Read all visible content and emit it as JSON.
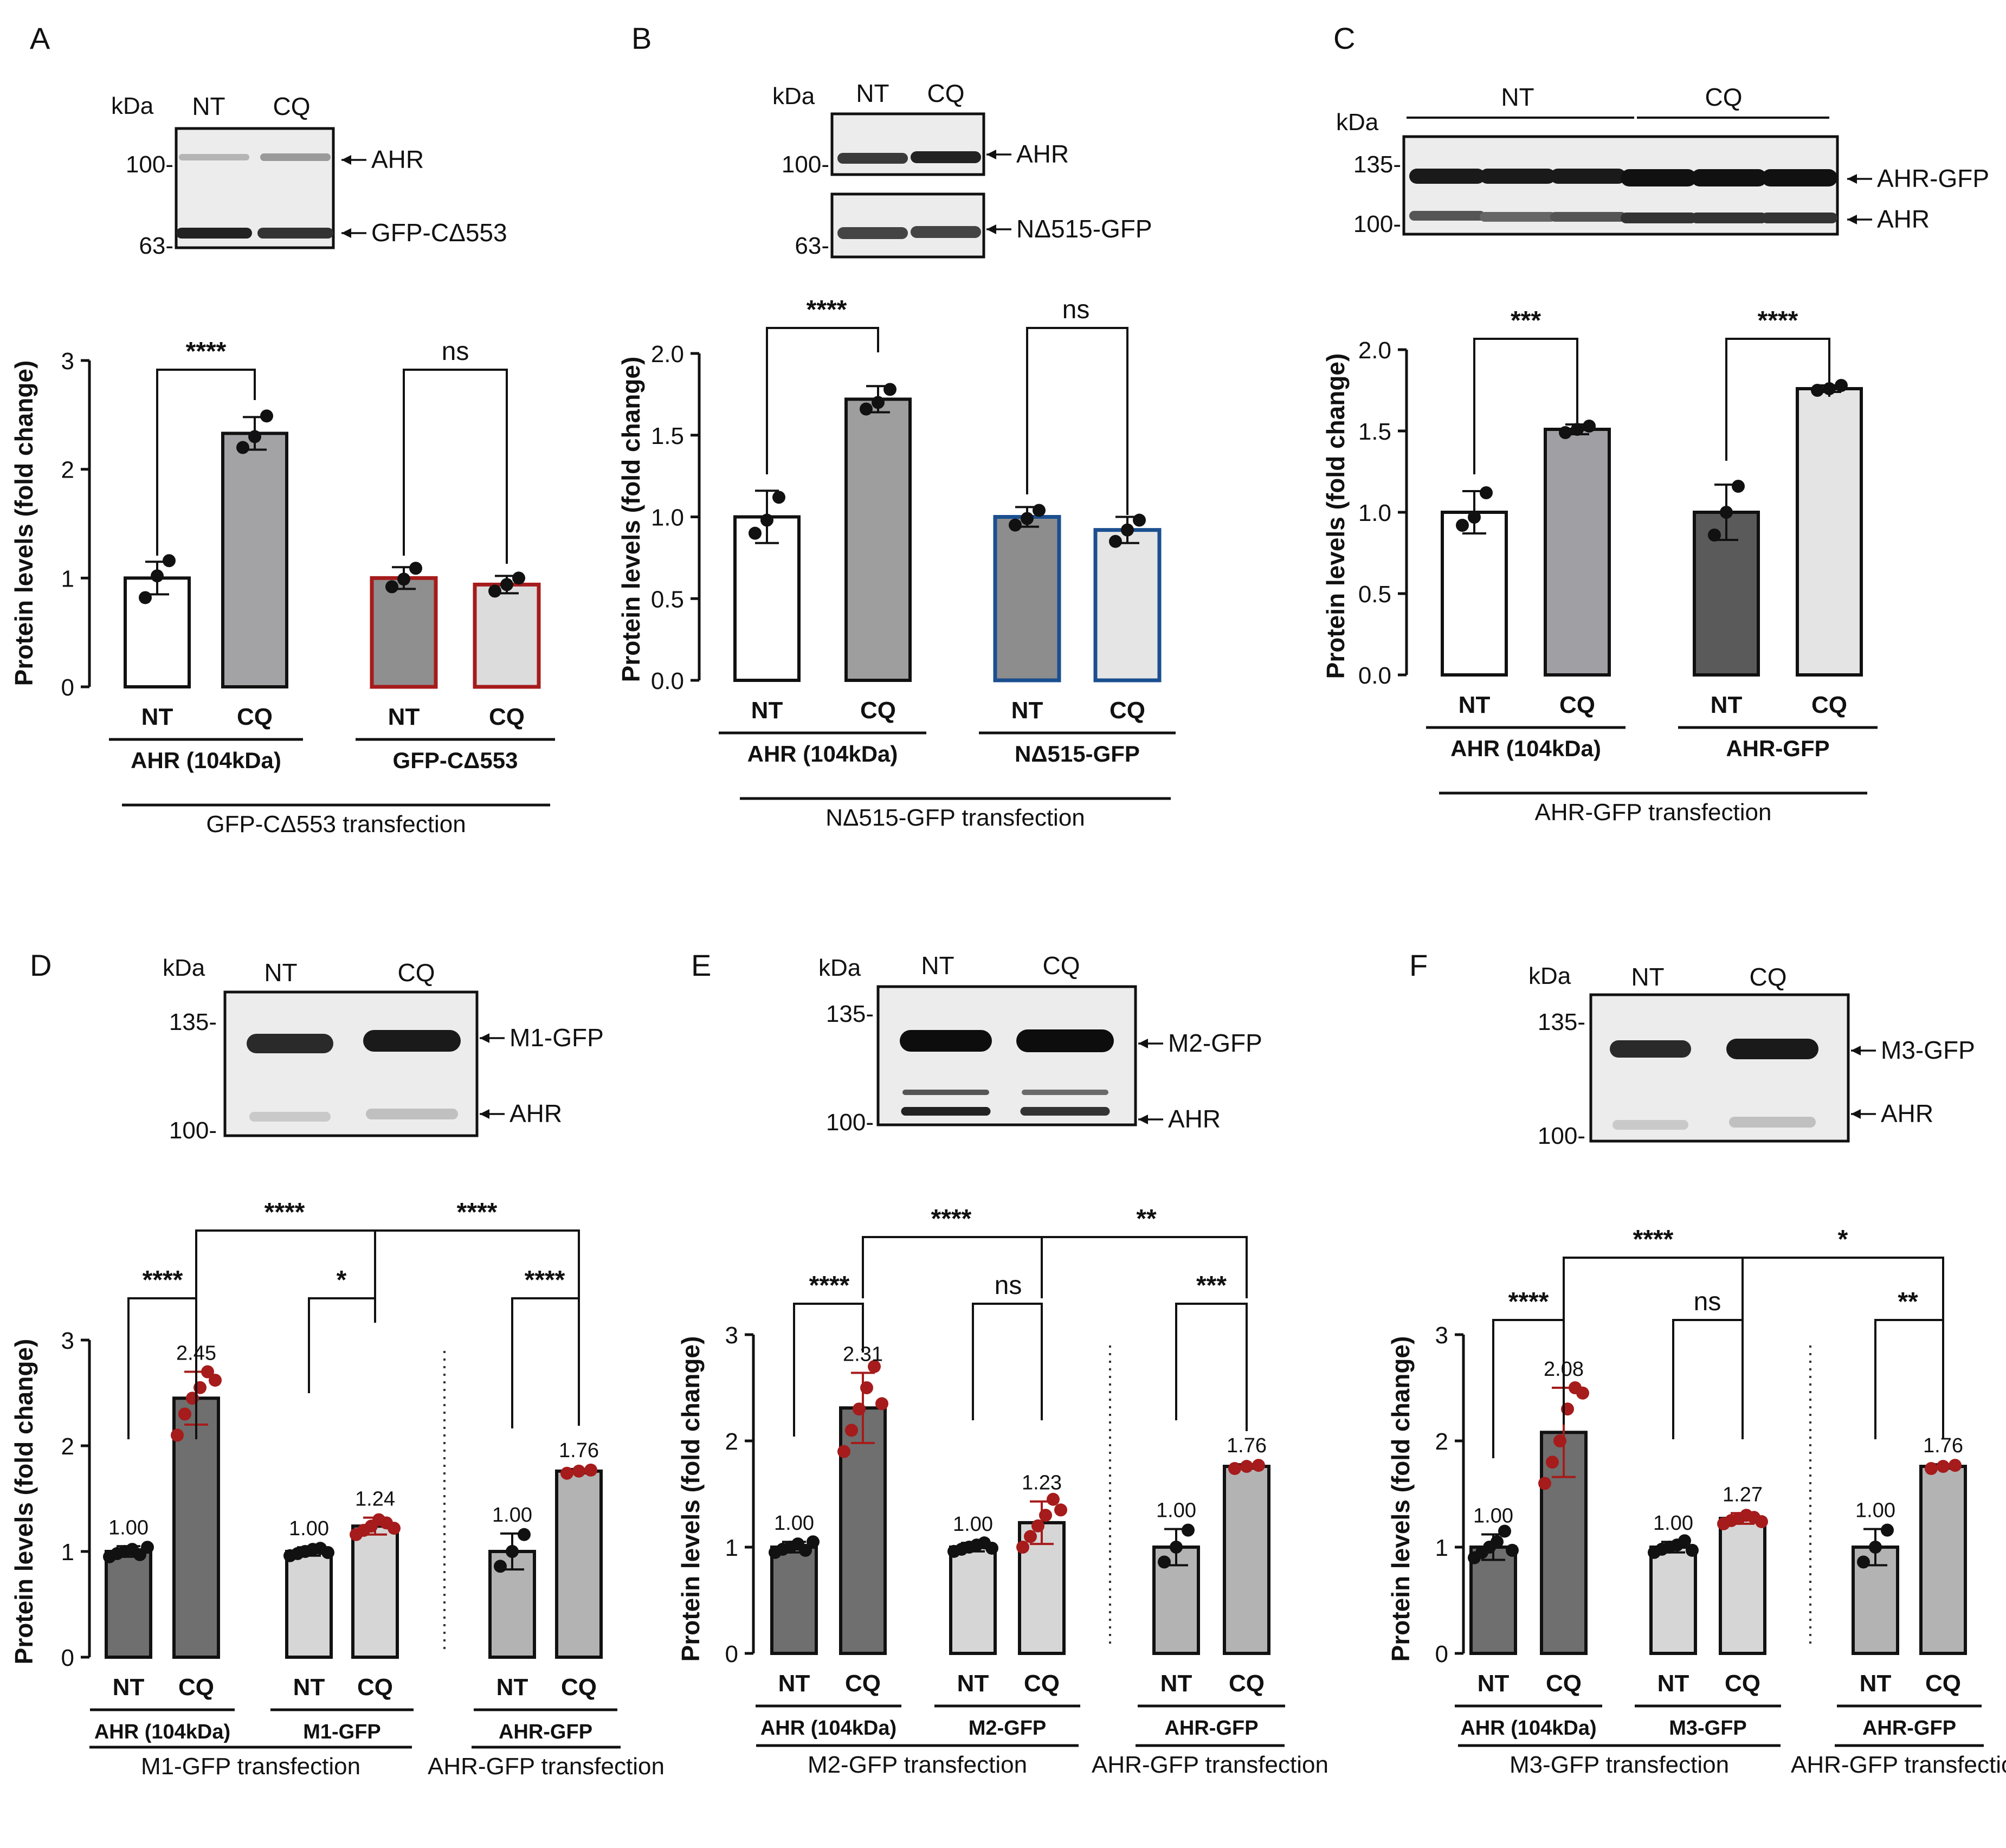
{
  "figure": {
    "panels": [
      {
        "letter": "A",
        "blot": {
          "kda_label": "kDa",
          "lanes": [
            "NT",
            "CQ"
          ],
          "markers": [
            "100-",
            "63-"
          ],
          "band_labels": [
            "AHR",
            "GFP-CΔ553"
          ]
        },
        "chart_data": {
          "type": "bar",
          "ylabel": "Protein levels (fold change)",
          "ylim": [
            0,
            3
          ],
          "yticks": [
            "0",
            "1",
            "2",
            "3"
          ],
          "groups": [
            {
              "label": "AHR (104kDa)",
              "label_color": "#111111",
              "categories": [
                "NT",
                "CQ"
              ],
              "values": [
                1.0,
                2.33
              ],
              "errors": [
                0.15,
                0.15
              ],
              "points": [
                [
                  0.82,
                  1.02,
                  1.16
                ],
                [
                  2.2,
                  2.3,
                  2.49
                ]
              ],
              "fills": [
                "#ffffff",
                "#a3a3a6"
              ],
              "edge": "#111111"
            },
            {
              "label": "GFP-CΔ553",
              "label_color": "#a61b1b",
              "categories": [
                "NT",
                "CQ"
              ],
              "values": [
                1.0,
                0.94
              ],
              "errors": [
                0.1,
                0.08
              ],
              "points": [
                [
                  0.92,
                  0.99,
                  1.09
                ],
                [
                  0.88,
                  0.94,
                  1.0
                ]
              ],
              "fills": [
                "#8f8f8f",
                "#dcdcdc"
              ],
              "edge": "#a61b1b"
            }
          ],
          "significance": [
            {
              "label": "****"
            },
            {
              "label": "ns"
            }
          ],
          "transfection_labels": [
            "GFP-CΔ553 transfection"
          ]
        }
      },
      {
        "letter": "B",
        "blot": {
          "kda_label": "kDa",
          "lanes": [
            "NT",
            "CQ"
          ],
          "markers": [
            "100-",
            "63-"
          ],
          "band_labels": [
            "AHR",
            "NΔ515-GFP"
          ]
        },
        "chart_data": {
          "type": "bar",
          "ylabel": "Protein levels (fold change)",
          "ylim": [
            0,
            2.0
          ],
          "yticks": [
            "0.0",
            "0.5",
            "1.0",
            "1.5",
            "2.0"
          ],
          "groups": [
            {
              "label": "AHR (104kDa)",
              "label_color": "#111111",
              "categories": [
                "NT",
                "CQ"
              ],
              "values": [
                1.0,
                1.72
              ],
              "errors": [
                0.16,
                0.08
              ],
              "points": [
                [
                  0.9,
                  0.98,
                  1.12
                ],
                [
                  1.66,
                  1.7,
                  1.78
                ]
              ],
              "fills": [
                "#ffffff",
                "#9e9e9e"
              ],
              "edge": "#111111"
            },
            {
              "label": "NΔ515-GFP",
              "label_color": "#1b4f8f",
              "categories": [
                "NT",
                "CQ"
              ],
              "values": [
                1.0,
                0.92
              ],
              "errors": [
                0.06,
                0.08
              ],
              "points": [
                [
                  0.95,
                  0.99,
                  1.04
                ],
                [
                  0.85,
                  0.92,
                  0.98
                ]
              ],
              "fills": [
                "#8d8d8d",
                "#e5e5e5"
              ],
              "edge": "#1b4f8f"
            }
          ],
          "significance": [
            {
              "label": "****"
            },
            {
              "label": "ns"
            }
          ],
          "transfection_labels": [
            "NΔ515-GFP transfection"
          ]
        }
      },
      {
        "letter": "C",
        "blot": {
          "kda_label": "kDa",
          "lanes": [
            "NT",
            "CQ"
          ],
          "markers": [
            "135-",
            "100-"
          ],
          "band_labels": [
            "AHR-GFP",
            "AHR"
          ]
        },
        "chart_data": {
          "type": "bar",
          "ylabel": "Protein levels (fold change)",
          "ylim": [
            0,
            2.0
          ],
          "yticks": [
            "0.0",
            "0.5",
            "1.0",
            "1.5",
            "2.0"
          ],
          "groups": [
            {
              "label": "AHR (104kDa)",
              "label_color": "#111111",
              "categories": [
                "NT",
                "CQ"
              ],
              "values": [
                1.0,
                1.51
              ],
              "errors": [
                0.13,
                0.03
              ],
              "points": [
                [
                  0.92,
                  0.97,
                  1.12
                ],
                [
                  1.49,
                  1.51,
                  1.53
                ]
              ],
              "fills": [
                "#ffffff",
                "#a0a0a4"
              ],
              "edge": "#111111"
            },
            {
              "label": "AHR-GFP",
              "label_color": "#111111",
              "categories": [
                "NT",
                "CQ"
              ],
              "values": [
                1.0,
                1.76
              ],
              "errors": [
                0.17,
                0.02
              ],
              "points": [
                [
                  0.86,
                  1.0,
                  1.16
                ],
                [
                  1.75,
                  1.76,
                  1.78
                ]
              ],
              "fills": [
                "#5a5a5a",
                "#e4e4e4"
              ],
              "edge": "#111111"
            }
          ],
          "significance": [
            {
              "label": "***"
            },
            {
              "label": "****"
            }
          ],
          "transfection_labels": [
            "AHR-GFP transfection"
          ]
        }
      },
      {
        "letter": "D",
        "blot": {
          "kda_label": "kDa",
          "lanes": [
            "NT",
            "CQ"
          ],
          "markers": [
            "135-",
            "100-"
          ],
          "band_labels": [
            "M1-GFP",
            "AHR"
          ]
        },
        "chart_data": {
          "type": "bar",
          "ylabel": "Protein levels (fold change)",
          "ylim": [
            0,
            3
          ],
          "yticks": [
            "0",
            "1",
            "2",
            "3"
          ],
          "groups": [
            {
              "label": "AHR (104kDa)",
              "label_color": "#111111",
              "categories": [
                "NT",
                "CQ"
              ],
              "values": [
                1.0,
                2.45
              ],
              "value_labels": [
                "1.00",
                "2.45"
              ],
              "errors": [
                0.05,
                0.25
              ],
              "points": [
                [
                  0.95,
                  0.98,
                  1.0,
                  1.02,
                  0.97,
                  1.04
                ],
                [
                  2.1,
                  2.3,
                  2.45,
                  2.55,
                  2.7,
                  2.62
                ]
              ],
              "fills": [
                "#6f6f6f",
                "#6f6f6f"
              ],
              "edge": "#111111"
            },
            {
              "label": "M1-GFP",
              "label_color": "#a61b1b",
              "categories": [
                "NT",
                "CQ"
              ],
              "values": [
                1.0,
                1.24
              ],
              "value_labels": [
                "1.00",
                "1.24"
              ],
              "errors": [
                0.04,
                0.08
              ],
              "points": [
                [
                  0.96,
                  0.98,
                  1.0,
                  1.02,
                  1.03,
                  0.99
                ],
                [
                  1.16,
                  1.2,
                  1.24,
                  1.3,
                  1.27,
                  1.22
                ]
              ],
              "fills": [
                "#d6d6d6",
                "#d6d6d6"
              ],
              "edge": "#111111"
            },
            {
              "label": "AHR-GFP",
              "label_color": "#111111",
              "categories": [
                "NT",
                "CQ"
              ],
              "values": [
                1.0,
                1.76
              ],
              "value_labels": [
                "1.00",
                "1.76"
              ],
              "errors": [
                0.17,
                0.02
              ],
              "points": [
                [
                  0.86,
                  1.0,
                  1.16
                ],
                [
                  1.74,
                  1.76,
                  1.77
                ]
              ],
              "fills": [
                "#b3b3b3",
                "#b3b3b3"
              ],
              "edge": "#111111"
            }
          ],
          "significance": [
            {
              "label": "****"
            },
            {
              "label": "*"
            },
            {
              "label": "****"
            },
            {
              "label": "****"
            },
            {
              "label": "****"
            }
          ],
          "transfection_labels": [
            "M1-GFP transfection",
            "AHR-GFP transfection"
          ]
        }
      },
      {
        "letter": "E",
        "blot": {
          "kda_label": "kDa",
          "lanes": [
            "NT",
            "CQ"
          ],
          "markers": [
            "135-",
            "100-"
          ],
          "band_labels": [
            "M2-GFP",
            "AHR"
          ]
        },
        "chart_data": {
          "type": "bar",
          "ylabel": "Protein levels (fold change)",
          "ylim": [
            0,
            3
          ],
          "yticks": [
            "0",
            "1",
            "2",
            "3"
          ],
          "groups": [
            {
              "label": "AHR (104kDa)",
              "label_color": "#111111",
              "categories": [
                "NT",
                "CQ"
              ],
              "values": [
                1.0,
                2.31
              ],
              "value_labels": [
                "1.00",
                "2.31"
              ],
              "errors": [
                0.05,
                0.33
              ],
              "points": [
                [
                  0.95,
                  0.98,
                  1.0,
                  1.03,
                  0.97,
                  1.05
                ],
                [
                  1.9,
                  2.1,
                  2.3,
                  2.5,
                  2.7,
                  2.35
                ]
              ],
              "fills": [
                "#6f6f6f",
                "#6f6f6f"
              ],
              "edge": "#111111"
            },
            {
              "label": "M2-GFP",
              "label_color": "#a61b1b",
              "categories": [
                "NT",
                "CQ"
              ],
              "values": [
                1.0,
                1.23
              ],
              "value_labels": [
                "1.00",
                "1.23"
              ],
              "errors": [
                0.04,
                0.2
              ],
              "points": [
                [
                  0.96,
                  0.98,
                  1.0,
                  1.02,
                  1.04,
                  0.99
                ],
                [
                  1.0,
                  1.1,
                  1.2,
                  1.3,
                  1.45,
                  1.35
                ]
              ],
              "fills": [
                "#d6d6d6",
                "#d6d6d6"
              ],
              "edge": "#111111"
            },
            {
              "label": "AHR-GFP",
              "label_color": "#111111",
              "categories": [
                "NT",
                "CQ"
              ],
              "values": [
                1.0,
                1.76
              ],
              "value_labels": [
                "1.00",
                "1.76"
              ],
              "errors": [
                0.17,
                0.02
              ],
              "points": [
                [
                  0.86,
                  1.0,
                  1.16
                ],
                [
                  1.74,
                  1.76,
                  1.77
                ]
              ],
              "fills": [
                "#b3b3b3",
                "#b3b3b3"
              ],
              "edge": "#111111"
            }
          ],
          "significance": [
            {
              "label": "****"
            },
            {
              "label": "ns"
            },
            {
              "label": "***"
            },
            {
              "label": "****"
            },
            {
              "label": "**"
            }
          ],
          "transfection_labels": [
            "M2-GFP transfection",
            "AHR-GFP transfection"
          ]
        }
      },
      {
        "letter": "F",
        "blot": {
          "kda_label": "kDa",
          "lanes": [
            "NT",
            "CQ"
          ],
          "markers": [
            "135-",
            "100-"
          ],
          "band_labels": [
            "M3-GFP",
            "AHR"
          ]
        },
        "chart_data": {
          "type": "bar",
          "ylabel": "Protein levels (fold change)",
          "ylim": [
            0,
            3
          ],
          "yticks": [
            "0",
            "1",
            "2",
            "3"
          ],
          "groups": [
            {
              "label": "AHR (104kDa)",
              "label_color": "#111111",
              "categories": [
                "NT",
                "CQ"
              ],
              "values": [
                1.0,
                2.08
              ],
              "value_labels": [
                "1.00",
                "2.08"
              ],
              "errors": [
                0.12,
                0.42
              ],
              "points": [
                [
                  0.9,
                  0.95,
                  1.0,
                  1.05,
                  1.15,
                  0.97
                ],
                [
                  1.6,
                  1.8,
                  2.0,
                  2.3,
                  2.5,
                  2.45
                ]
              ],
              "fills": [
                "#6f6f6f",
                "#6f6f6f"
              ],
              "edge": "#111111"
            },
            {
              "label": "M3-GFP",
              "label_color": "#a61b1b",
              "categories": [
                "NT",
                "CQ"
              ],
              "values": [
                1.0,
                1.27
              ],
              "value_labels": [
                "1.00",
                "1.27"
              ],
              "errors": [
                0.05,
                0.05
              ],
              "points": [
                [
                  0.95,
                  0.98,
                  1.0,
                  1.02,
                  1.06,
                  0.97
                ],
                [
                  1.22,
                  1.25,
                  1.27,
                  1.3,
                  1.28,
                  1.24
                ]
              ],
              "fills": [
                "#d6d6d6",
                "#d6d6d6"
              ],
              "edge": "#111111"
            },
            {
              "label": "AHR-GFP",
              "label_color": "#111111",
              "categories": [
                "NT",
                "CQ"
              ],
              "values": [
                1.0,
                1.76
              ],
              "value_labels": [
                "1.00",
                "1.76"
              ],
              "errors": [
                0.17,
                0.02
              ],
              "points": [
                [
                  0.86,
                  1.0,
                  1.16
                ],
                [
                  1.74,
                  1.76,
                  1.77
                ]
              ],
              "fills": [
                "#b3b3b3",
                "#b3b3b3"
              ],
              "edge": "#111111"
            }
          ],
          "significance": [
            {
              "label": "****"
            },
            {
              "label": "ns"
            },
            {
              "label": "**"
            },
            {
              "label": "****"
            },
            {
              "label": "*"
            }
          ],
          "transfection_labels": [
            "M3-GFP transfection",
            "AHR-GFP transfection"
          ]
        }
      }
    ]
  }
}
